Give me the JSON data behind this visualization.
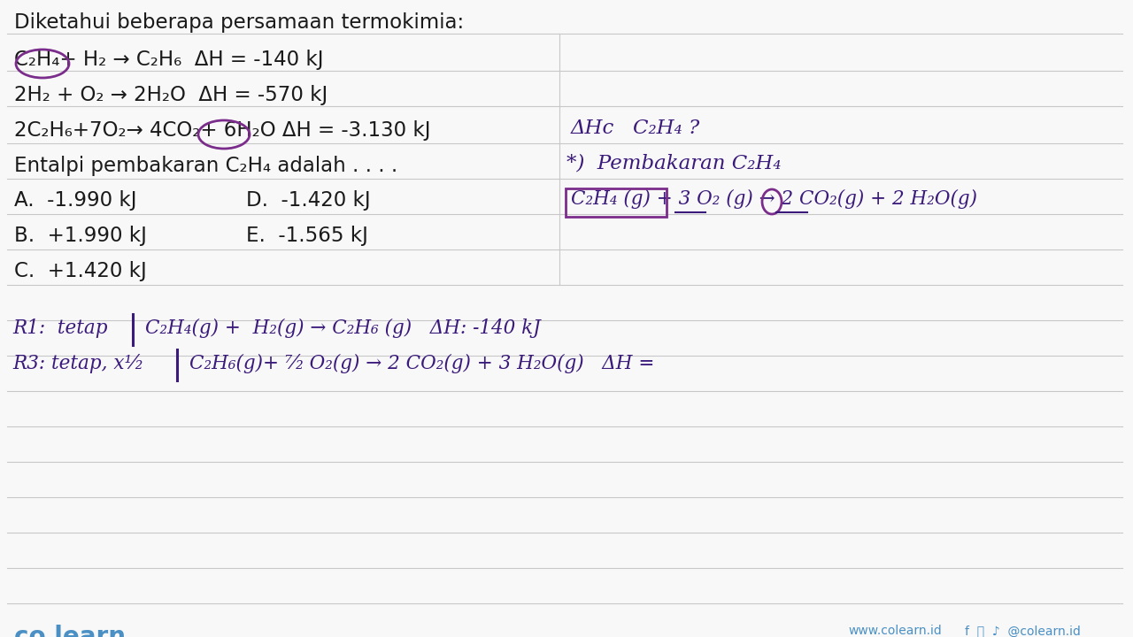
{
  "bg_color": "#f8f8f8",
  "text_color_black": "#1a1a1a",
  "text_color_purple": "#3a1a7a",
  "circle_color": "#7B2D8B",
  "line_color": "#c8c8c8",
  "box_color": "#7B2D8B",
  "colearn_blue": "#4A90C4",
  "title": "Diketahui beberapa persamaan termokimia:",
  "eq1": "C₂H₄+ H₂ → C₂H₆  ΔH = -140 kJ",
  "eq2": "2H₂ + O₂ → 2H₂O  ΔH = -570 kJ",
  "eq3": "2C₂H₆+7O₂→ 4CO₂+ 6H₂O ΔH = -3.130 kJ",
  "eq4": "Entalpi pembakaran C₂H₄ adalah . . . .",
  "optA": "A.  -1.990 kJ",
  "optB": "B.  +1.990 kJ",
  "optC": "C.  +1.420 kJ",
  "optD": "D.  -1.420 kJ",
  "optE": "E.  -1.565 kJ",
  "rhs1": "ΔHc   C₂H₄ ?",
  "rhs2": "*)  Pembakaran C₂H₄",
  "rhs3": "C₂H₄ (g) + 3 O₂ (g) → 2 CO₂(g) + 2 H₂O(g)",
  "bot1_left": "R1:  tetap",
  "bot1_right": "C₂H₄(g) + H₂(g) → C₂H₆ (g)   ΔH: -140 kJ",
  "bot2_left": "R3: tetap, x¹⁄₂",
  "bot2_right": "C₂H₆(g)+ ···O₂(g) → 2 CO₂(g) + 3 H₂O(g)   ΔH ="
}
